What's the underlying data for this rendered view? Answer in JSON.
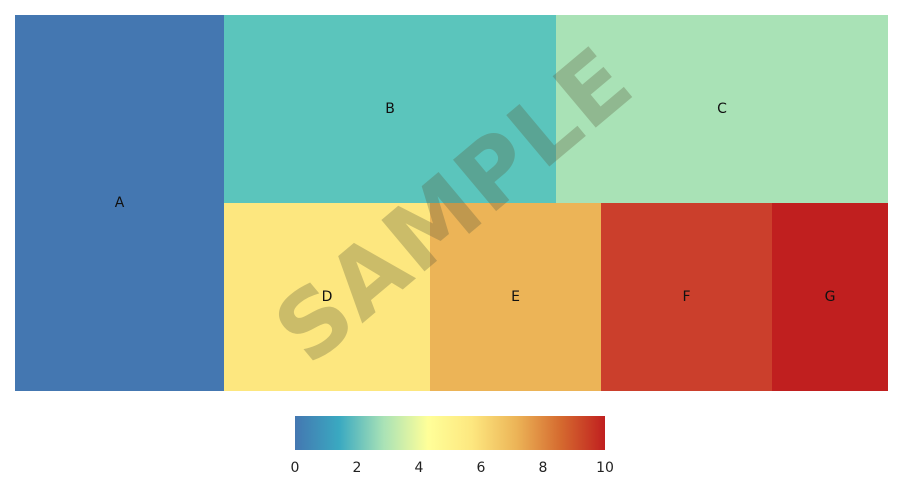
{
  "chart_data": {
    "type": "treemap",
    "title": "",
    "tiles": [
      {
        "label": "A",
        "value": 0.5,
        "color": "#4477b1"
      },
      {
        "label": "B",
        "value": 1.9,
        "color": "#5bc5bc"
      },
      {
        "label": "C",
        "value": 3.1,
        "color": "#a9e2b6"
      },
      {
        "label": "D",
        "value": 5.5,
        "color": "#fde77f"
      },
      {
        "label": "E",
        "value": 7.1,
        "color": "#ecb457"
      },
      {
        "label": "F",
        "value": 9.1,
        "color": "#cb3f2c"
      },
      {
        "label": "G",
        "value": 10.0,
        "color": "#c01f1f"
      }
    ],
    "colorbar": {
      "min": 0,
      "max": 10,
      "ticks": [
        0,
        2,
        4,
        6,
        8,
        10
      ],
      "colors": [
        "#4477b1",
        "#3aa9c1",
        "#a9e2b6",
        "#ffff99",
        "#fde77f",
        "#ecb457",
        "#d56a2f",
        "#c01f1f"
      ]
    },
    "watermark": "SAMPLE"
  }
}
